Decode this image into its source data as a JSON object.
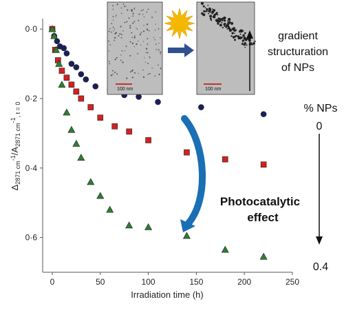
{
  "chart_data": {
    "type": "scatter",
    "xlabel": "Irradiation time (h)",
    "ylabel": "A2871 cm-1/A2871 cm-1, t = 0",
    "ylabel_parts": {
      "delta": "Δ",
      "sub1": "2871 cm",
      "sup1": "-1",
      "slash": "/A",
      "sub2": "2871 cm",
      "sup2": "-1",
      "sub3": ", t = 0"
    },
    "xlim": [
      -10,
      250
    ],
    "ylim": [
      0.7,
      -0.03
    ],
    "x_ticks": [
      0,
      50,
      100,
      150,
      200,
      250
    ],
    "x_tick_labels": [
      "0",
      "50",
      "100",
      "150",
      "200",
      "250"
    ],
    "y_ticks": [
      0,
      0.2,
      0.4,
      0.6
    ],
    "y_tick_labels": [
      "0·0",
      "0·2",
      "0·4",
      "0·6"
    ],
    "series": [
      {
        "marker": "circle",
        "color": "#1a1f5c",
        "points": [
          [
            0,
            0
          ],
          [
            2,
            0.02
          ],
          [
            5,
            0.035
          ],
          [
            8,
            0.05
          ],
          [
            12,
            0.055
          ],
          [
            15,
            0.07
          ],
          [
            20,
            0.1
          ],
          [
            25,
            0.11
          ],
          [
            30,
            0.13
          ],
          [
            35,
            0.145
          ],
          [
            45,
            0.165
          ],
          [
            60,
            0.175
          ],
          [
            75,
            0.19
          ],
          [
            90,
            0.195
          ],
          [
            110,
            0.21
          ],
          [
            155,
            0.225
          ],
          [
            220,
            0.245
          ]
        ]
      },
      {
        "marker": "square",
        "color": "#d42020",
        "points": [
          [
            0,
            0
          ],
          [
            3,
            0.06
          ],
          [
            6,
            0.09
          ],
          [
            10,
            0.12
          ],
          [
            15,
            0.14
          ],
          [
            20,
            0.16
          ],
          [
            25,
            0.18
          ],
          [
            30,
            0.2
          ],
          [
            40,
            0.225
          ],
          [
            50,
            0.255
          ],
          [
            65,
            0.28
          ],
          [
            80,
            0.295
          ],
          [
            100,
            0.32
          ],
          [
            140,
            0.355
          ],
          [
            180,
            0.375
          ],
          [
            220,
            0.39
          ]
        ]
      },
      {
        "marker": "triangle",
        "color": "#2e7d32",
        "points": [
          [
            0,
            0
          ],
          [
            2,
            0.02
          ],
          [
            4,
            0.06
          ],
          [
            7,
            0.1
          ],
          [
            10,
            0.16
          ],
          [
            15,
            0.24
          ],
          [
            20,
            0.29
          ],
          [
            25,
            0.33
          ],
          [
            30,
            0.37
          ],
          [
            40,
            0.44
          ],
          [
            50,
            0.48
          ],
          [
            60,
            0.52
          ],
          [
            80,
            0.565
          ],
          [
            100,
            0.57
          ],
          [
            140,
            0.595
          ],
          [
            180,
            0.635
          ],
          [
            220,
            0.655
          ]
        ]
      }
    ]
  },
  "annotations": {
    "gradient_line1": "gradient",
    "gradient_line2": "structuration",
    "gradient_line3": "of NPs",
    "np_label": "% NPs",
    "np_top": "0",
    "np_bottom": "0.4",
    "photo_line1": "Photocatalytic",
    "photo_line2": "effect",
    "scale_left": "100 nm",
    "scale_right": "100 nm"
  },
  "colors": {
    "photo_text": "#1a6fb5",
    "arc": "#1a6fb5",
    "sun": "#f5b800",
    "arrow": "#2f4f8f"
  },
  "icons": {
    "sun": "sun-icon",
    "arrow": "right-arrow-icon"
  }
}
